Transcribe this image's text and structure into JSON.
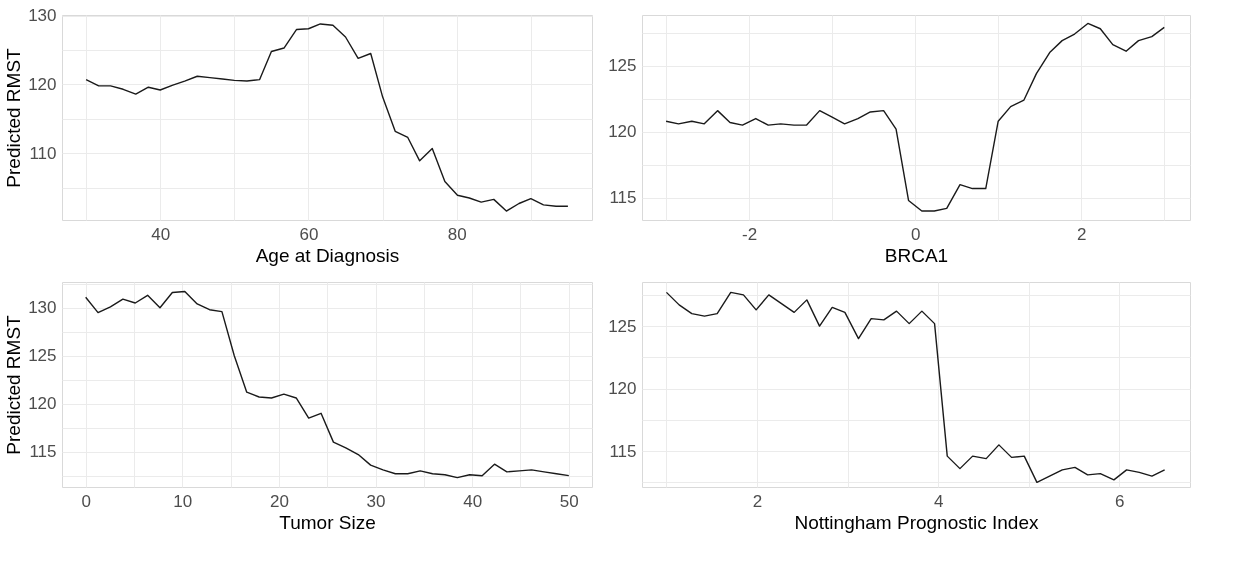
{
  "chart_data": [
    {
      "type": "line",
      "xlabel": "Age at Diagnosis",
      "ylabel": "Predicted RMST",
      "grid": true,
      "xlim": [
        26.75,
        98.25
      ],
      "ylim": [
        100.3,
        130.1
      ],
      "xticks": [
        {
          "value": 30,
          "label": null
        },
        40,
        {
          "value": 50,
          "label": null
        },
        60,
        {
          "value": 70,
          "label": null
        },
        80,
        {
          "value": 90,
          "label": null
        }
      ],
      "yticks": [
        {
          "value": 105,
          "label": null
        },
        110,
        {
          "value": 115,
          "label": null
        },
        120,
        {
          "value": 125,
          "label": null
        },
        130
      ],
      "x": [
        30.0,
        31.7,
        33.3,
        35.0,
        36.7,
        38.4,
        40.0,
        41.7,
        43.3,
        45.0,
        46.7,
        48.4,
        50.0,
        51.7,
        53.4,
        55.0,
        56.7,
        58.4,
        60.0,
        61.6,
        63.3,
        65.0,
        66.7,
        68.4,
        70.0,
        71.7,
        73.4,
        75.0,
        76.7,
        78.4,
        80.1,
        81.7,
        83.3,
        85.0,
        86.7,
        88.4,
        90.0,
        91.7,
        93.4,
        95.0
      ],
      "series": [
        {
          "color": "#1a1a1a",
          "values": [
            120.7,
            119.8,
            119.8,
            119.3,
            118.6,
            119.6,
            119.2,
            119.9,
            120.5,
            121.2,
            121.0,
            120.8,
            120.6,
            120.5,
            120.7,
            124.8,
            125.3,
            128.0,
            128.1,
            128.8,
            128.6,
            126.9,
            123.8,
            124.5,
            118.2,
            113.2,
            112.3,
            108.9,
            110.7,
            105.9,
            103.9,
            103.5,
            102.9,
            103.3,
            101.6,
            102.7,
            103.4,
            102.5,
            102.3,
            102.3
          ]
        }
      ]
    },
    {
      "type": "line",
      "xlabel": "BRCA1",
      "grid": true,
      "xlim": [
        -3.29,
        3.31
      ],
      "ylim": [
        113.32,
        128.84
      ],
      "xticks": [
        {
          "value": -3,
          "label": null
        },
        -2,
        {
          "value": -1,
          "label": null
        },
        0,
        {
          "value": 1,
          "label": null
        },
        2,
        {
          "value": 3,
          "label": null
        }
      ],
      "yticks": [
        115,
        {
          "value": 117.5,
          "label": null
        },
        120,
        {
          "value": 122.5,
          "label": null
        },
        125,
        {
          "value": 127.5,
          "label": null
        }
      ],
      "x": [
        -3.0,
        -2.85,
        -2.69,
        -2.54,
        -2.38,
        -2.23,
        -2.08,
        -1.92,
        -1.77,
        -1.62,
        -1.46,
        -1.31,
        -1.15,
        -1.0,
        -0.85,
        -0.69,
        -0.54,
        -0.38,
        -0.23,
        -0.08,
        0.08,
        0.23,
        0.38,
        0.54,
        0.69,
        0.85,
        1.0,
        1.15,
        1.31,
        1.46,
        1.62,
        1.77,
        1.92,
        2.08,
        2.23,
        2.38,
        2.54,
        2.69,
        2.85,
        3.0
      ],
      "series": [
        {
          "color": "#1a1a1a",
          "values": [
            120.8,
            120.6,
            120.8,
            120.6,
            121.6,
            120.7,
            120.5,
            121.0,
            120.5,
            120.6,
            120.5,
            120.5,
            121.6,
            121.1,
            120.6,
            121.0,
            121.5,
            121.6,
            120.2,
            114.8,
            114.0,
            114.0,
            114.2,
            116.0,
            115.7,
            115.7,
            120.8,
            121.9,
            122.4,
            124.4,
            126.0,
            126.9,
            127.4,
            128.2,
            127.8,
            126.6,
            126.1,
            126.9,
            127.2,
            127.9
          ]
        }
      ]
    },
    {
      "type": "line",
      "xlabel": "Tumor Size",
      "ylabel": "Predicted RMST",
      "grid": true,
      "xlim": [
        -2.45,
        52.4
      ],
      "ylim": [
        111.32,
        132.69
      ],
      "xticks": [
        0,
        {
          "value": 5,
          "label": null
        },
        10,
        {
          "value": 15,
          "label": null
        },
        20,
        {
          "value": 25,
          "label": null
        },
        30,
        {
          "value": 35,
          "label": null
        },
        40,
        {
          "value": 45,
          "label": null
        },
        50
      ],
      "yticks": [
        {
          "value": 112.5,
          "label": null
        },
        115,
        {
          "value": 117.5,
          "label": null
        },
        120,
        {
          "value": 122.5,
          "label": null
        },
        125,
        {
          "value": 127.5,
          "label": null
        },
        130,
        {
          "value": 132.5,
          "label": null
        }
      ],
      "x": [
        0.0,
        1.28,
        2.56,
        3.85,
        5.13,
        6.41,
        7.69,
        8.97,
        10.26,
        11.54,
        12.82,
        14.1,
        15.38,
        16.67,
        17.95,
        19.23,
        20.51,
        21.79,
        23.08,
        24.36,
        25.64,
        26.92,
        28.21,
        29.49,
        30.77,
        32.05,
        33.33,
        34.62,
        35.9,
        37.18,
        38.46,
        39.74,
        41.03,
        42.31,
        43.59,
        44.87,
        46.15,
        47.44,
        48.72,
        50.0
      ],
      "series": [
        {
          "color": "#1a1a1a",
          "values": [
            131.1,
            129.5,
            130.1,
            130.9,
            130.5,
            131.3,
            130.0,
            131.6,
            131.7,
            130.4,
            129.8,
            129.6,
            125.0,
            121.2,
            120.7,
            120.6,
            121.0,
            120.6,
            118.5,
            119.0,
            116.0,
            115.4,
            114.7,
            113.6,
            113.1,
            112.7,
            112.7,
            113.0,
            112.7,
            112.6,
            112.3,
            112.6,
            112.5,
            113.7,
            112.9,
            113.0,
            113.1,
            112.9,
            112.7,
            112.5
          ]
        }
      ]
    },
    {
      "type": "line",
      "xlabel": "Nottingham Prognostic Index",
      "grid": true,
      "xlim": [
        0.73,
        6.78
      ],
      "ylim": [
        112.13,
        128.53
      ],
      "xticks": [
        {
          "value": 1,
          "label": null
        },
        2,
        {
          "value": 3,
          "label": null
        },
        4,
        {
          "value": 5,
          "label": null
        },
        6
      ],
      "yticks": [
        {
          "value": 112.5,
          "label": null
        },
        115,
        {
          "value": 117.5,
          "label": null
        },
        120,
        {
          "value": 122.5,
          "label": null
        },
        125,
        {
          "value": 127.5,
          "label": null
        }
      ],
      "x": [
        1.0,
        1.14,
        1.28,
        1.42,
        1.56,
        1.71,
        1.85,
        1.99,
        2.13,
        2.27,
        2.41,
        2.55,
        2.69,
        2.83,
        2.97,
        3.12,
        3.26,
        3.4,
        3.54,
        3.68,
        3.82,
        3.96,
        4.1,
        4.24,
        4.38,
        4.53,
        4.67,
        4.81,
        4.95,
        5.09,
        5.23,
        5.37,
        5.51,
        5.65,
        5.79,
        5.94,
        6.08,
        6.22,
        6.36,
        6.5
      ],
      "series": [
        {
          "color": "#1a1a1a",
          "values": [
            127.7,
            126.7,
            126.0,
            125.8,
            126.0,
            127.7,
            127.5,
            126.3,
            127.5,
            126.8,
            126.1,
            127.1,
            125.0,
            126.5,
            126.1,
            124.0,
            125.6,
            125.5,
            126.2,
            125.2,
            126.2,
            125.2,
            114.6,
            113.6,
            114.6,
            114.4,
            115.5,
            114.5,
            114.6,
            112.5,
            113.0,
            113.5,
            113.7,
            113.1,
            113.2,
            112.7,
            113.5,
            113.3,
            113.0,
            113.5
          ]
        }
      ]
    }
  ]
}
